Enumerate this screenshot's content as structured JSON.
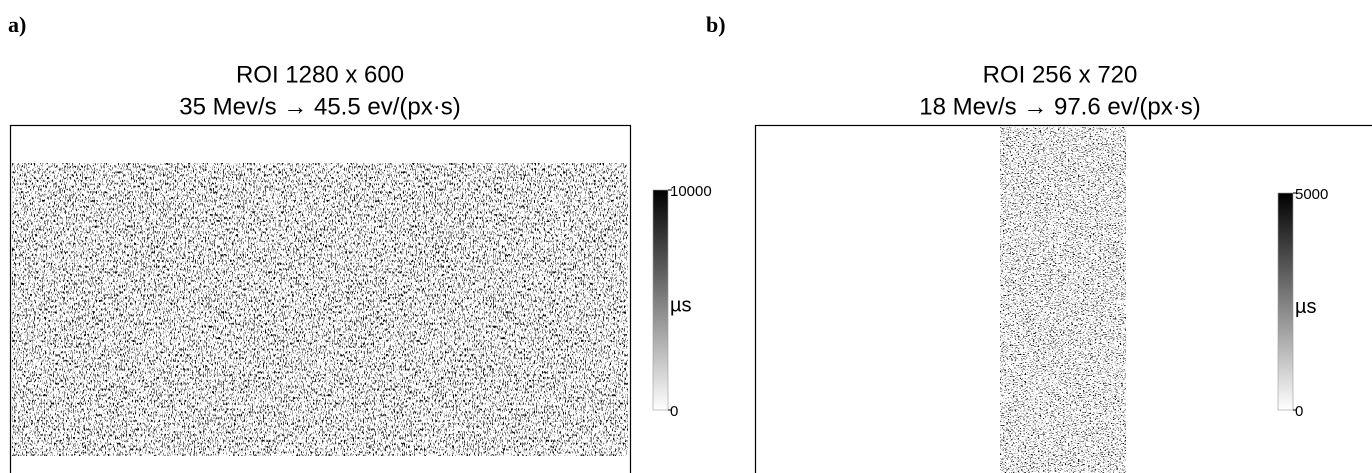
{
  "panels": [
    {
      "label": "a)",
      "title": [
        "ROI 1280 x 600",
        "35 Mev/s → 45.5 ev/(px·s)"
      ],
      "colorbar": {
        "lim": [
          0,
          10000
        ],
        "ticks": [
          0,
          10000
        ],
        "unit": "µs"
      }
    },
    {
      "label": "b)",
      "title": [
        "ROI 256 x 720",
        "18 Mev/s → 97.6 ev/(px·s)"
      ],
      "colorbar": {
        "lim": [
          0,
          5000
        ],
        "ticks": [
          0,
          5000
        ],
        "unit": "µs"
      }
    }
  ]
}
